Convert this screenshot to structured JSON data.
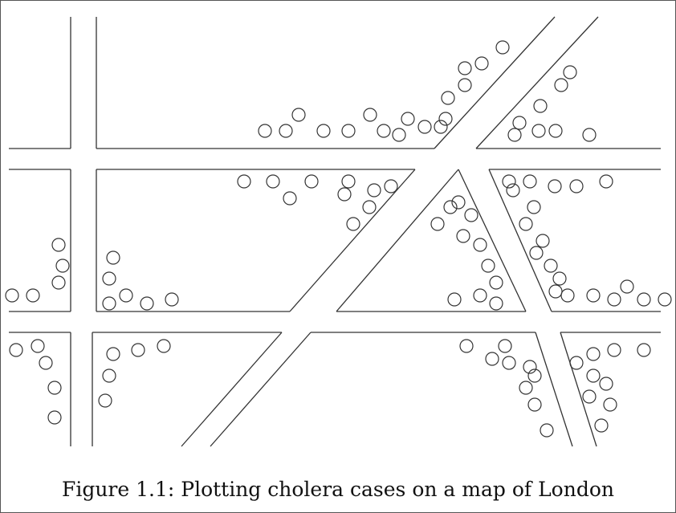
{
  "caption": "Figure 1.1: Plotting cholera cases on a map of London",
  "colors": {
    "stroke": "#333333",
    "background": "#ffffff"
  },
  "map": {
    "features": "street outlines (lines) and cholera cases (circles)"
  }
}
